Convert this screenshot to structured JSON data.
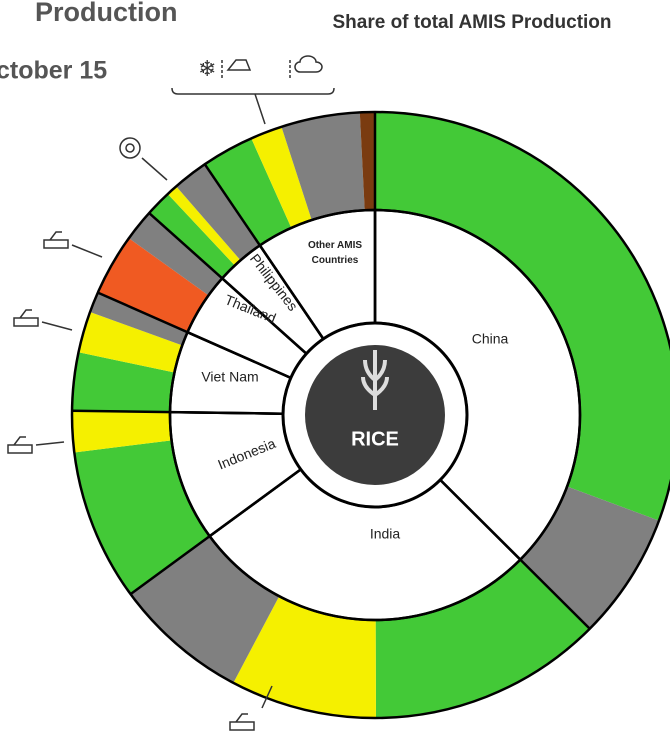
{
  "chart_data": {
    "type": "sunburst",
    "title": "Share of total AMIS Production",
    "header": [
      "Production",
      "ctober 15"
    ],
    "center_label": "RICE",
    "categories": [
      "China",
      "India",
      "Indonesia",
      "Viet Nam",
      "Thailand",
      "Philippines",
      "Other AMIS Countries"
    ],
    "values": [
      37.5,
      27.5,
      10.3,
      6.4,
      5.0,
      3.9,
      9.5
    ],
    "segments": [
      [
        {
          "value": 30.7,
          "color": "#43c937"
        },
        {
          "value": 6.8,
          "color": "#808080"
        }
      ],
      [
        {
          "value": 12.5,
          "color": "#43c937"
        },
        {
          "value": 7.8,
          "color": "#f5f000"
        },
        {
          "value": 7.2,
          "color": "#808080"
        }
      ],
      [
        {
          "value": 8.1,
          "color": "#43c937"
        },
        {
          "value": 2.2,
          "color": "#f5f000"
        }
      ],
      [
        {
          "value": 3.1,
          "color": "#43c937"
        },
        {
          "value": 2.2,
          "color": "#f5f000"
        },
        {
          "value": 1.1,
          "color": "#808080"
        }
      ],
      [
        {
          "value": 3.3,
          "color": "#f05a22"
        },
        {
          "value": 1.7,
          "color": "#808080"
        }
      ],
      [
        {
          "value": 1.4,
          "color": "#43c937"
        },
        {
          "value": 0.6,
          "color": "#f5f000"
        },
        {
          "value": 1.9,
          "color": "#808080"
        }
      ],
      [
        {
          "value": 2.8,
          "color": "#43c937"
        },
        {
          "value": 1.7,
          "color": "#f5f000"
        },
        {
          "value": 4.2,
          "color": "#808080"
        },
        {
          "value": 0.8,
          "color": "#7a3b10"
        }
      ]
    ]
  }
}
